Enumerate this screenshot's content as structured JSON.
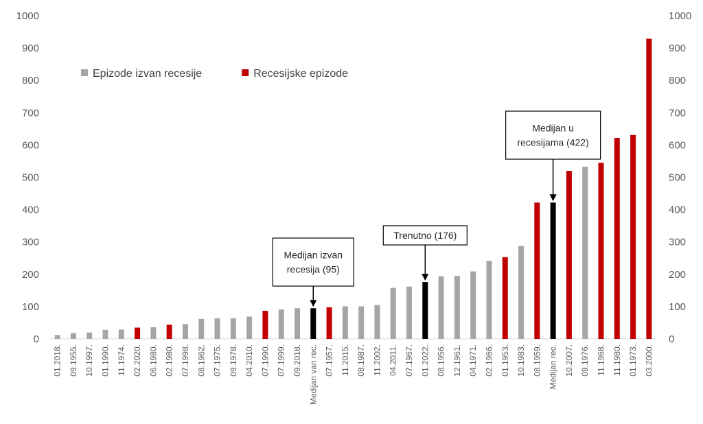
{
  "chart_data": {
    "type": "bar",
    "title": "",
    "xlabel": "",
    "ylabel": "",
    "ylim": [
      0,
      1000
    ],
    "yticks": [
      0,
      100,
      200,
      300,
      400,
      500,
      600,
      700,
      800,
      900,
      1000
    ],
    "grid": false,
    "colors": {
      "non_recession": "#a6a6a6",
      "recession": "#c00000",
      "median_current": "#000000",
      "axis": "#d9d9d9"
    },
    "legend": {
      "position": "top-left",
      "items": [
        {
          "label": "Epizode izvan recesije",
          "kind": "non_recession"
        },
        {
          "label": "Recesijske epizode",
          "kind": "recession"
        }
      ]
    },
    "categories": [
      "01.2018.",
      "09.1955.",
      "10.1997.",
      "01.1990.",
      "11.1974.",
      "02.2020.",
      "06.1980.",
      "02.1980.",
      "07.1998.",
      "08.1962.",
      "07.1975.",
      "09.1978.",
      "04.2010.",
      "07.1990.",
      "07.1999.",
      "09.2018.",
      "Medijan van rec.",
      "07.1957.",
      "11.2015.",
      "08.1987.",
      "11.2002.",
      "04.2011.",
      "07.1967.",
      "01.2022.",
      "08.1956.",
      "12.1961.",
      "04.1971.",
      "02.1966.",
      "01.1953.",
      "10.1983.",
      "08.1959.",
      "Medijan rec.",
      "10.2007.",
      "09.1976.",
      "11.1968.",
      "11.1980.",
      "01.1973.",
      "03.2000."
    ],
    "values": [
      12,
      18,
      20,
      28,
      29,
      35,
      36,
      44,
      46,
      62,
      64,
      64,
      69,
      87,
      91,
      95,
      95,
      98,
      101,
      101,
      105,
      158,
      162,
      176,
      194,
      195,
      209,
      242,
      253,
      288,
      422,
      422,
      520,
      533,
      545,
      622,
      631,
      929
    ],
    "kinds": [
      "non_recession",
      "non_recession",
      "non_recession",
      "non_recession",
      "non_recession",
      "recession",
      "non_recession",
      "recession",
      "non_recession",
      "non_recession",
      "non_recession",
      "non_recession",
      "non_recession",
      "recession",
      "non_recession",
      "non_recession",
      "median_current",
      "recession",
      "non_recession",
      "non_recession",
      "non_recession",
      "non_recession",
      "non_recession",
      "median_current",
      "non_recession",
      "non_recession",
      "non_recession",
      "non_recession",
      "recession",
      "non_recession",
      "recession",
      "median_current",
      "recession",
      "non_recession",
      "recession",
      "recession",
      "recession",
      "recession"
    ],
    "annotations": [
      {
        "lines": [
          "Medijan izvan",
          "recesija (95)"
        ],
        "category_index": 16
      },
      {
        "lines": [
          "Trenutno (176)"
        ],
        "category_index": 23
      },
      {
        "lines": [
          "Medijan u",
          "recesijama (422)"
        ],
        "category_index": 31
      }
    ]
  }
}
